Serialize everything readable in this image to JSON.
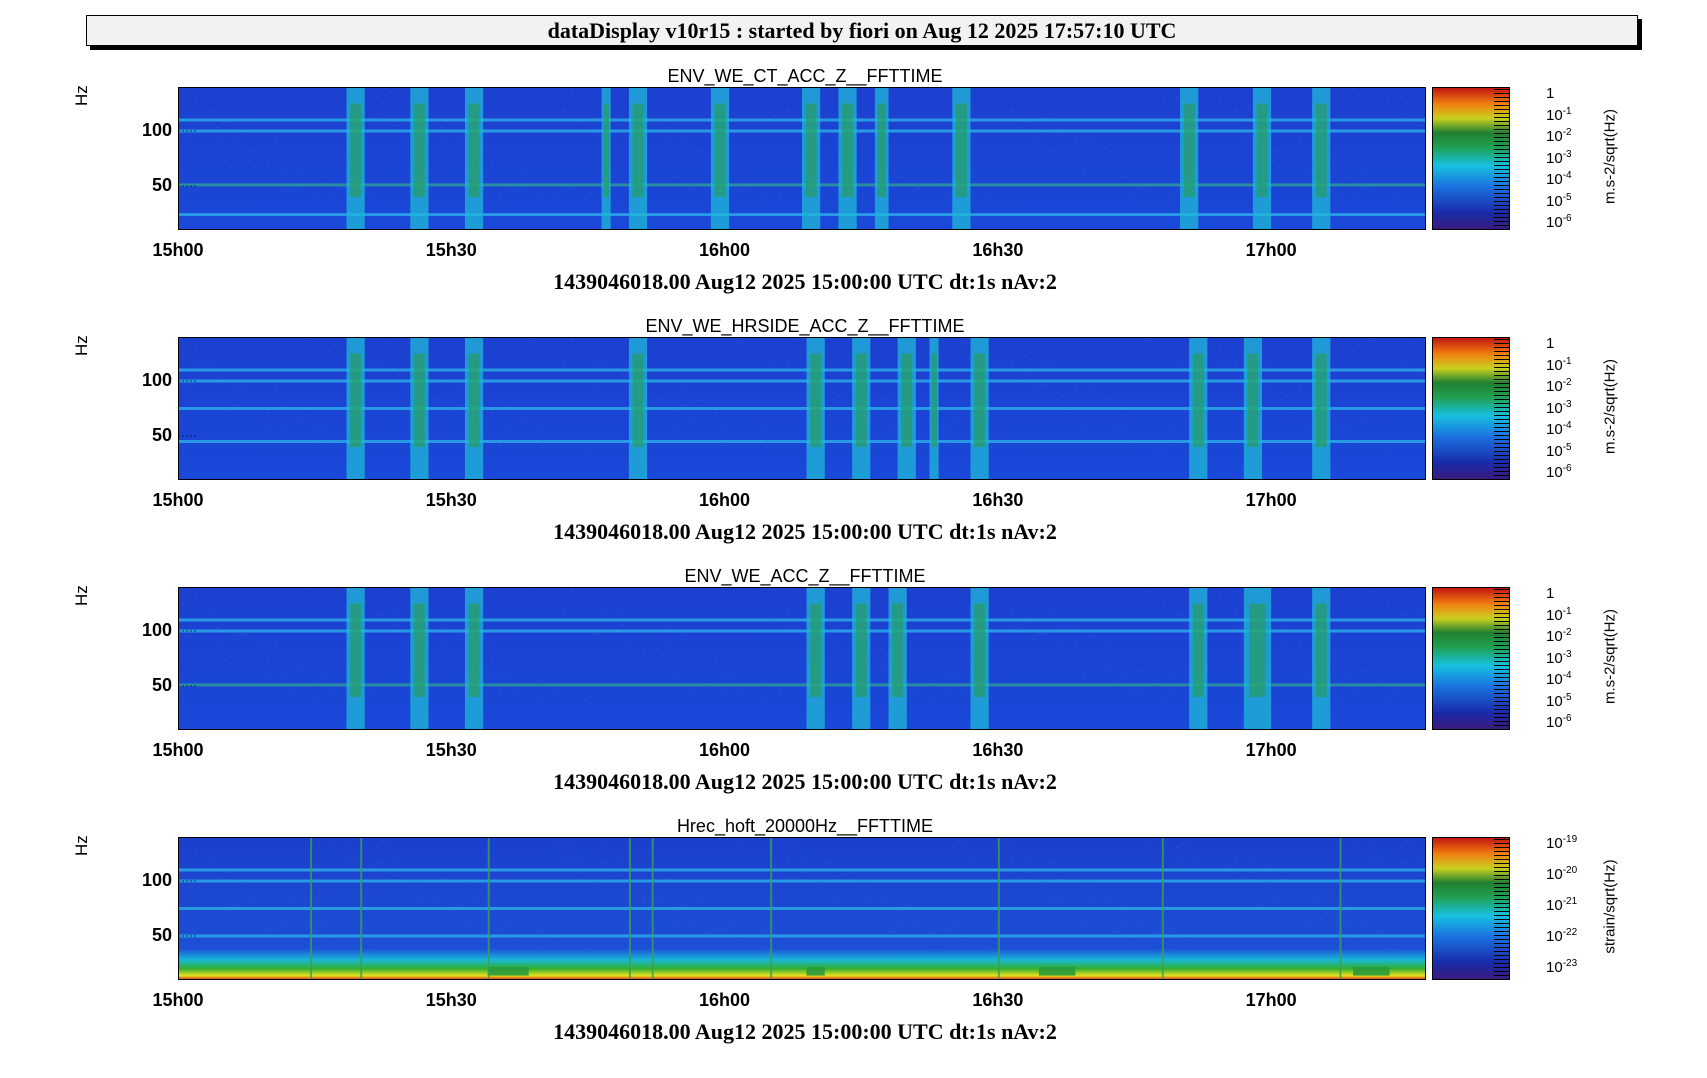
{
  "header": {
    "title": "dataDisplay v10r15 : started by fiori on Aug 12 2025 17:57:10 UTC"
  },
  "axis_common": {
    "y_label": "Hz",
    "y_ticks": [
      "100",
      "50"
    ],
    "x_ticks": [
      "15h00",
      "15h30",
      "16h00",
      "16h30",
      "17h00"
    ],
    "footer": "1439046018.00 Aug12 2025 15:00:00 UTC dt:1s nAv:2"
  },
  "panels": [
    {
      "title": "ENV_WE_CT_ACC_Z__FFTTIME",
      "colorbar_unit": "m.s-2/sqrt(Hz)",
      "colorbar_labels": [
        {
          "base": "1",
          "exp": ""
        },
        {
          "base": "10",
          "exp": "-1"
        },
        {
          "base": "10",
          "exp": "-2"
        },
        {
          "base": "10",
          "exp": "-3"
        },
        {
          "base": "10",
          "exp": "-4"
        },
        {
          "base": "10",
          "exp": "-5"
        },
        {
          "base": "10",
          "exp": "-6"
        }
      ]
    },
    {
      "title": "ENV_WE_HRSIDE_ACC_Z__FFTTIME",
      "colorbar_unit": "m.s-2/sqrt(Hz)",
      "colorbar_labels": [
        {
          "base": "1",
          "exp": ""
        },
        {
          "base": "10",
          "exp": "-1"
        },
        {
          "base": "10",
          "exp": "-2"
        },
        {
          "base": "10",
          "exp": "-3"
        },
        {
          "base": "10",
          "exp": "-4"
        },
        {
          "base": "10",
          "exp": "-5"
        },
        {
          "base": "10",
          "exp": "-6"
        }
      ]
    },
    {
      "title": "ENV_WE_ACC_Z__FFTTIME",
      "colorbar_unit": "m.s-2/sqrt(Hz)",
      "colorbar_labels": [
        {
          "base": "1",
          "exp": ""
        },
        {
          "base": "10",
          "exp": "-1"
        },
        {
          "base": "10",
          "exp": "-2"
        },
        {
          "base": "10",
          "exp": "-3"
        },
        {
          "base": "10",
          "exp": "-4"
        },
        {
          "base": "10",
          "exp": "-5"
        },
        {
          "base": "10",
          "exp": "-6"
        }
      ]
    },
    {
      "title": "Hrec_hoft_20000Hz__FFTTIME",
      "colorbar_unit": "strain/sqrt(Hz)",
      "colorbar_labels": [
        {
          "base": "10",
          "exp": "-19"
        },
        {
          "base": "10",
          "exp": "-20"
        },
        {
          "base": "10",
          "exp": "-21"
        },
        {
          "base": "10",
          "exp": "-22"
        },
        {
          "base": "10",
          "exp": "-23"
        }
      ]
    }
  ],
  "chart_data": [
    {
      "type": "heatmap",
      "title": "ENV_WE_CT_ACC_Z__FFTTIME",
      "xlabel": "",
      "ylabel": "Hz",
      "x_range_min": [
        0,
        137
      ],
      "y_range_hz": [
        10,
        140
      ],
      "zscale": "log",
      "z_range": [
        1e-06,
        1
      ],
      "z_unit": "m.s-2/sqrt(Hz)",
      "colors": {
        "background": "#1a3fd0",
        "low": "#2a1a8a",
        "mid": "#18c8e8",
        "high": "#d02010"
      },
      "lines_hz": [
        24,
        51,
        100,
        110
      ],
      "bursts_min": [
        [
          18.5,
          20.5
        ],
        [
          25.5,
          27.5
        ],
        [
          31.5,
          33.5
        ],
        [
          46.5,
          47.5
        ],
        [
          49.5,
          51.5
        ],
        [
          58.5,
          60.5
        ],
        [
          68.5,
          70.5
        ],
        [
          72.5,
          74.5
        ],
        [
          76.5,
          78
        ],
        [
          85,
          87
        ],
        [
          110,
          112
        ],
        [
          118,
          120
        ],
        [
          124.5,
          126.5
        ]
      ]
    },
    {
      "type": "heatmap",
      "title": "ENV_WE_HRSIDE_ACC_Z__FFTTIME",
      "xlabel": "",
      "ylabel": "Hz",
      "x_range_min": [
        0,
        137
      ],
      "y_range_hz": [
        10,
        140
      ],
      "zscale": "log",
      "z_range": [
        1e-06,
        1
      ],
      "z_unit": "m.s-2/sqrt(Hz)",
      "lines_hz": [
        45,
        75,
        100,
        110
      ],
      "bursts_min": [
        [
          18.5,
          20.5
        ],
        [
          25.5,
          27.5
        ],
        [
          31.5,
          33.5
        ],
        [
          49.5,
          51.5
        ],
        [
          69,
          71
        ],
        [
          74,
          76
        ],
        [
          79,
          81
        ],
        [
          82.5,
          83.5
        ],
        [
          87,
          89
        ],
        [
          111,
          113
        ],
        [
          117,
          119
        ],
        [
          124.5,
          126.5
        ]
      ]
    },
    {
      "type": "heatmap",
      "title": "ENV_WE_ACC_Z__FFTTIME",
      "xlabel": "",
      "ylabel": "Hz",
      "x_range_min": [
        0,
        137
      ],
      "y_range_hz": [
        10,
        140
      ],
      "zscale": "log",
      "z_range": [
        1e-06,
        1
      ],
      "z_unit": "m.s-2/sqrt(Hz)",
      "lines_hz": [
        51,
        100,
        110
      ],
      "bursts_min": [
        [
          18.5,
          20.5
        ],
        [
          25.5,
          27.5
        ],
        [
          31.5,
          33.5
        ],
        [
          69,
          71
        ],
        [
          74,
          76
        ],
        [
          78,
          80
        ],
        [
          87,
          89
        ],
        [
          111,
          113
        ],
        [
          117,
          120
        ],
        [
          124.5,
          126.5
        ]
      ]
    },
    {
      "type": "heatmap",
      "title": "Hrec_hoft_20000Hz__FFTTIME",
      "xlabel": "",
      "ylabel": "Hz",
      "x_range_min": [
        0,
        137
      ],
      "y_range_hz": [
        10,
        140
      ],
      "zscale": "log",
      "z_range": [
        1e-23,
        1e-19
      ],
      "z_unit": "strain/sqrt(Hz)",
      "lines_hz": [
        50,
        75,
        100,
        110
      ],
      "glitches_min": [
        14.5,
        20,
        34,
        49.5,
        52,
        65,
        90,
        108,
        127.5
      ],
      "bursts_min": [
        [
          34,
          38.5
        ],
        [
          69,
          71
        ],
        [
          94.5,
          98.5
        ],
        [
          129,
          133
        ]
      ]
    }
  ]
}
